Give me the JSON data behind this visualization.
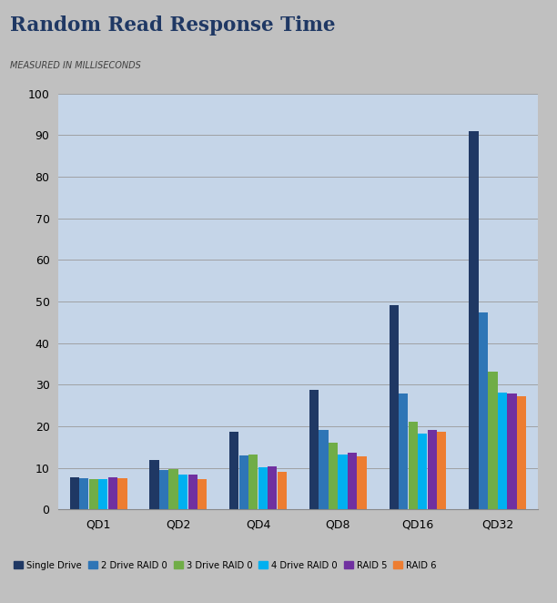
{
  "title_line1": "Random Read Response Time",
  "subtitle": "Measured in Milliseconds",
  "categories": [
    "QD1",
    "QD2",
    "QD4",
    "QD8",
    "QD16",
    "QD32"
  ],
  "series": [
    {
      "label": "Single Drive",
      "color": "#1F3864",
      "values": [
        7.7,
        11.8,
        18.7,
        28.8,
        49.2,
        91.0
      ]
    },
    {
      "label": "2 Drive RAID 0",
      "color": "#2E75B6",
      "values": [
        7.5,
        9.5,
        13.1,
        19.1,
        27.8,
        47.3
      ]
    },
    {
      "label": "3 Drive RAID 0",
      "color": "#70AD47",
      "values": [
        7.3,
        9.7,
        13.2,
        16.0,
        21.2,
        33.2
      ]
    },
    {
      "label": "4 Drive RAID 0",
      "color": "#00B0F0",
      "values": [
        7.3,
        8.3,
        10.1,
        13.2,
        18.3,
        28.0
      ]
    },
    {
      "label": "RAID 5",
      "color": "#7030A0",
      "values": [
        7.7,
        8.5,
        10.3,
        13.7,
        19.2,
        27.8
      ]
    },
    {
      "label": "RAID 6",
      "color": "#ED7D31",
      "values": [
        7.6,
        7.4,
        9.0,
        12.8,
        18.7,
        27.2
      ]
    }
  ],
  "ylim": [
    0,
    100
  ],
  "yticks": [
    0,
    10,
    20,
    30,
    40,
    50,
    60,
    70,
    80,
    90,
    100
  ],
  "plot_bg_color": "#C5D5E8",
  "outer_bg_color": "#C0C0C0",
  "header_bg_color": "#CCCCCC",
  "chart_area_bg": "#E8E8E8",
  "title_color": "#1F3864",
  "subtitle_color": "#404040",
  "grid_color": "#AAAAAA",
  "figsize": [
    6.12,
    6.62
  ],
  "dpi": 100
}
